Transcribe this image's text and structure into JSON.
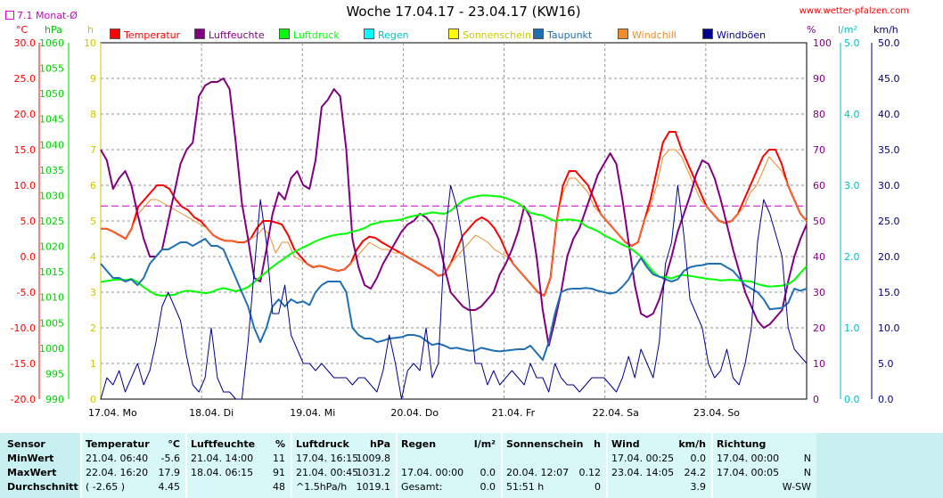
{
  "title": "Woche 17.04.17 - 23.04.17 (KW16)",
  "site": "www.wetter-pfalzen.com",
  "avg_label": "7.1 Monat-Ø",
  "units": {
    "temp": "°C",
    "hpa": "hPa",
    "sun": "h",
    "hum": "%",
    "rain": "l/m²",
    "wind": "km/h"
  },
  "legend": [
    {
      "label": "Temperatur",
      "color": "#ff0000"
    },
    {
      "label": "Luftfeuchte",
      "color": "#800080"
    },
    {
      "label": "Luftdruck",
      "color": "#00ff00"
    },
    {
      "label": "Regen",
      "color": "#00ffff"
    },
    {
      "label": "Sonnenschein",
      "color": "#ffff00"
    },
    {
      "label": "Taupunkt",
      "color": "#1e6fb4"
    },
    {
      "label": "Windchill",
      "color": "#f08c28"
    },
    {
      "label": "Windböen",
      "color": "#000090"
    }
  ],
  "chart_data": {
    "type": "line",
    "title": "Woche 17.04.17 - 23.04.17 (KW16)",
    "x_ticks": [
      "17.04. Mo",
      "18.04. Di",
      "19.04. Mi",
      "20.04. Do",
      "21.04. Fr",
      "22.04. Sa",
      "23.04. So"
    ],
    "axes": {
      "temp": {
        "ticks": [
          "30.0",
          "25.0",
          "20.0",
          "15.0",
          "10.0",
          "5.0",
          "0.0",
          "-5.0",
          "-10.0",
          "-15.0",
          "-20.0"
        ],
        "range": [
          -20,
          30
        ],
        "color": "#ff0000"
      },
      "hpa": {
        "ticks": [
          "1060",
          "1055",
          "1050",
          "1045",
          "1040",
          "1035",
          "1030",
          "1025",
          "1020",
          "1015",
          "1010",
          "1005",
          "1000",
          "995",
          "990"
        ],
        "range": [
          990,
          1060
        ],
        "color": "#00d000"
      },
      "sun": {
        "ticks": [
          "10",
          "9",
          "8",
          "7",
          "6",
          "5",
          "4",
          "3",
          "2",
          "1",
          "0"
        ],
        "range": [
          0,
          10
        ],
        "color": "#c8c800"
      },
      "hum": {
        "ticks": [
          "100",
          "90",
          "80",
          "70",
          "60",
          "50",
          "40",
          "30",
          "20",
          "10",
          "0"
        ],
        "range": [
          0,
          100
        ],
        "color": "#800080"
      },
      "rain": {
        "ticks": [
          "5.0",
          "4.0",
          "3.0",
          "2.0",
          "1.0",
          "0.0"
        ],
        "range": [
          0,
          5
        ],
        "color": "#00c0c0"
      },
      "wind": {
        "ticks": [
          "50.0",
          "45.0",
          "40.0",
          "35.0",
          "30.0",
          "25.0",
          "20.0",
          "15.0",
          "10.0",
          "5.0",
          "0.0"
        ],
        "range": [
          0,
          50
        ],
        "color": "#000080"
      }
    },
    "month_avg_temp": 7.1,
    "grid": true,
    "series": [
      {
        "name": "Temperatur",
        "axis": "temp",
        "color": "#ff0000",
        "width": 2,
        "values": [
          3.9,
          3.9,
          3.5,
          3.0,
          2.5,
          4,
          7,
          8,
          9,
          10,
          10,
          9.5,
          8,
          7,
          6.5,
          5.5,
          5,
          4,
          3,
          2.5,
          2.2,
          2.2,
          2,
          2,
          2.5,
          4,
          5,
          5,
          4.8,
          4.5,
          3,
          1,
          0,
          -1,
          -1.5,
          -1.3,
          -1.5,
          -1.8,
          -2,
          -1.8,
          -1,
          1,
          2.2,
          2.8,
          2.6,
          2,
          1.5,
          1,
          0.5,
          0,
          -0.5,
          -1,
          -1.5,
          -2,
          -2.7,
          -2.5,
          -1,
          1,
          3,
          4,
          5,
          5.5,
          5,
          4,
          2.5,
          0.5,
          -1,
          -2,
          -3,
          -4,
          -5,
          -5.5,
          -3,
          5,
          10,
          12,
          12,
          11,
          10,
          8,
          6,
          5,
          4,
          3,
          2,
          1.5,
          2,
          5,
          8,
          12,
          16,
          17.5,
          17.5,
          15,
          13,
          11,
          9,
          7,
          6,
          5,
          4.7,
          5,
          6,
          8,
          10,
          12,
          14,
          15,
          15,
          13,
          10,
          8,
          6,
          5
        ]
      },
      {
        "name": "Windchill",
        "axis": "temp",
        "color": "#f08c28",
        "width": 1,
        "values": [
          3.9,
          3.9,
          3.5,
          3.0,
          2.5,
          4,
          6,
          7,
          8,
          8,
          7.5,
          7,
          6.5,
          6,
          5.5,
          5,
          4.5,
          4,
          3,
          2.5,
          2.2,
          2.2,
          2,
          2,
          2.5,
          3,
          4,
          3,
          0.5,
          2,
          2,
          0,
          -0.5,
          -1,
          -1.5,
          -1.3,
          -1.5,
          -1.8,
          -2,
          -1.8,
          -1,
          0,
          1,
          2,
          1.5,
          1,
          1,
          0.5,
          0.5,
          0,
          -0.5,
          -1,
          -1.5,
          -2,
          -2.7,
          -2.5,
          -1,
          0,
          1,
          2,
          3,
          2.5,
          2,
          1,
          0.5,
          0,
          -1,
          -2,
          -3,
          -4,
          -5,
          -5.5,
          -3,
          5,
          9,
          11,
          11,
          10,
          9,
          7,
          6,
          5,
          4,
          3,
          2,
          1.5,
          2,
          5,
          7,
          10,
          14,
          15,
          15,
          14,
          12,
          10,
          8,
          7,
          6,
          5,
          4.7,
          5,
          6,
          7,
          9,
          10,
          12,
          14,
          13,
          12,
          10,
          8,
          6,
          5
        ]
      },
      {
        "name": "Luftfeuchte",
        "axis": "hum",
        "color": "#800080",
        "width": 2,
        "values": [
          70,
          67,
          59,
          62,
          64,
          60,
          52,
          45,
          40,
          40,
          42,
          50,
          58,
          66,
          70,
          72,
          85,
          88,
          89,
          89,
          90,
          87,
          72,
          55,
          45,
          34,
          33,
          42,
          52,
          58,
          56,
          62,
          64,
          60,
          59,
          67,
          82,
          84,
          87,
          85,
          70,
          45,
          37,
          32,
          31,
          34,
          38,
          41,
          44,
          47,
          49,
          50,
          52,
          51,
          49,
          45,
          37,
          30,
          28,
          26,
          25,
          25,
          26,
          28,
          30,
          35,
          38,
          42,
          47,
          54,
          51,
          40,
          25,
          15,
          22,
          30,
          40,
          45,
          48,
          53,
          58,
          63,
          66,
          69,
          66,
          56,
          44,
          32,
          24,
          23,
          24,
          28,
          34,
          40,
          47,
          52,
          57,
          63,
          67,
          66,
          62,
          56,
          49,
          42,
          36,
          30,
          26,
          22,
          20,
          21,
          23,
          25,
          33,
          40,
          45,
          49
        ]
      },
      {
        "name": "Luftdruck",
        "axis": "hpa",
        "color": "#00ff00",
        "width": 2,
        "values": [
          1013,
          1013.2,
          1013.4,
          1013.5,
          1013.4,
          1013.6,
          1013,
          1012,
          1011.2,
          1010.5,
          1010.3,
          1010.4,
          1010.5,
          1011,
          1011.3,
          1011.2,
          1011,
          1010.8,
          1011,
          1011.5,
          1011.8,
          1011.5,
          1011.2,
          1011.5,
          1012,
          1013,
          1014,
          1015,
          1016,
          1016.9,
          1017.7,
          1018.6,
          1019.2,
          1019.8,
          1020.4,
          1021,
          1021.5,
          1021.9,
          1022.2,
          1022.4,
          1022.5,
          1022.9,
          1023.2,
          1023.6,
          1024.3,
          1024.6,
          1024.9,
          1025,
          1025.1,
          1025.3,
          1025.7,
          1026,
          1026.2,
          1026.4,
          1026.7,
          1026.5,
          1026.4,
          1027,
          1028,
          1029,
          1029.5,
          1029.8,
          1030,
          1030,
          1029.9,
          1029.8,
          1029.5,
          1029,
          1028.5,
          1027.5,
          1026.6,
          1026.3,
          1026.1,
          1025.5,
          1025,
          1025.2,
          1025.3,
          1025.2,
          1025,
          1024,
          1023.5,
          1023,
          1022.2,
          1021.6,
          1021,
          1020.3,
          1019.8,
          1019,
          1018,
          1016.5,
          1015,
          1014,
          1014,
          1013.7,
          1014.2,
          1014.4,
          1014.2,
          1014,
          1013.8,
          1013.6,
          1013.5,
          1013.3,
          1013.4,
          1013.4,
          1013.3,
          1013.2,
          1013.1,
          1012.6,
          1012.3,
          1012.1,
          1012.2,
          1012.3,
          1012.6,
          1013.4,
          1014.8,
          1016.1
        ]
      },
      {
        "name": "Taupunkt",
        "axis": "temp",
        "color": "#1e6fb4",
        "width": 2,
        "values": [
          -1,
          -2,
          -3,
          -3,
          -3.5,
          -3.2,
          -4,
          -3,
          -1,
          0,
          1,
          1,
          1.5,
          2,
          2,
          1.5,
          2,
          2.5,
          1.5,
          1.5,
          1,
          -1,
          -3,
          -5,
          -7,
          -10,
          -12,
          -10,
          -7,
          -6,
          -7,
          -6,
          -6.5,
          -6.3,
          -6.8,
          -5,
          -4,
          -3.5,
          -3.5,
          -3.5,
          -5,
          -10,
          -11,
          -11.5,
          -11.5,
          -12,
          -11.8,
          -11.5,
          -11.4,
          -11.3,
          -11,
          -11,
          -11.2,
          -11.8,
          -12.4,
          -12.2,
          -12.5,
          -12.9,
          -12.8,
          -13,
          -13.2,
          -13.2,
          -12.8,
          -13,
          -13.2,
          -13.3,
          -13.2,
          -13.1,
          -13,
          -13,
          -12.5,
          -13.5,
          -14.5,
          -12,
          -8,
          -5,
          -4.6,
          -4.5,
          -4.5,
          -4.4,
          -4.5,
          -4.8,
          -5,
          -5.2,
          -5,
          -4.2,
          -3.2,
          -1.5,
          -0.2,
          -1.5,
          -2.5,
          -2.8,
          -3.2,
          -3.5,
          -3.2,
          -2,
          -1.5,
          -1.3,
          -1.2,
          -1,
          -1,
          -1,
          -1.5,
          -2,
          -3,
          -4,
          -4.5,
          -5,
          -6,
          -7.4,
          -7.3,
          -7.2,
          -6.5,
          -4.5,
          -4.8,
          -4.5
        ]
      },
      {
        "name": "Windböen",
        "axis": "wind",
        "color": "#000090",
        "width": 1,
        "values": [
          0,
          3,
          2,
          4,
          1,
          3,
          5,
          2,
          4,
          8,
          13,
          15,
          13,
          11,
          6,
          2,
          1,
          3,
          10,
          3,
          1,
          1,
          0,
          0,
          8,
          18,
          28,
          22,
          12,
          12,
          16,
          9,
          7,
          5,
          5,
          4,
          5,
          4,
          3,
          3,
          3,
          2,
          3,
          3,
          2,
          1,
          4,
          9,
          5,
          0,
          4,
          5,
          4,
          10,
          3,
          5,
          22,
          30,
          27,
          22,
          14,
          5,
          5,
          2,
          4,
          2,
          3,
          4,
          3,
          2,
          5,
          3,
          3,
          1,
          5,
          3,
          2,
          2,
          1,
          2,
          3,
          3,
          3,
          2,
          1,
          3,
          6,
          3,
          7,
          5,
          3,
          8,
          19,
          22,
          30,
          23,
          14,
          12,
          10,
          5,
          3,
          4,
          7,
          3,
          2,
          5,
          10,
          22,
          28,
          26,
          23,
          20,
          10,
          7,
          6,
          5
        ]
      }
    ]
  },
  "table": {
    "row_labels": [
      "Sensor",
      "MinWert",
      "MaxWert",
      "Durchschnitt"
    ],
    "columns": [
      {
        "header": "Temperatur",
        "unit": "°C",
        "rows": [
          [
            "21.04.  06:40",
            "-5.6"
          ],
          [
            "22.04.  16:20",
            "17.9"
          ],
          [
            "( -2.65 )",
            "4.45"
          ]
        ]
      },
      {
        "header": "Luftfeuchte",
        "unit": "%",
        "rows": [
          [
            "21.04.  14:00",
            "11"
          ],
          [
            "18.04.  06:15",
            "91"
          ],
          [
            "",
            "48"
          ]
        ]
      },
      {
        "header": "Luftdruck",
        "unit": "hPa",
        "rows": [
          [
            "17.04.  16:15",
            "1009.8"
          ],
          [
            "21.04.  00:45",
            "1031.2"
          ],
          [
            "^1.5hPa/h",
            "1019.1"
          ]
        ]
      },
      {
        "header": "Regen",
        "unit": "l/m²",
        "rows": [
          [
            "",
            ""
          ],
          [
            "17.04.  00:00",
            "0.0"
          ],
          [
            "Gesamt:",
            "0.0"
          ]
        ]
      },
      {
        "header": "Sonnenschein",
        "unit": "h",
        "rows": [
          [
            "",
            ""
          ],
          [
            "20.04.  12:07",
            "0.12"
          ],
          [
            "51:51 h",
            "0"
          ]
        ]
      },
      {
        "header": "Wind",
        "unit": "km/h",
        "rows": [
          [
            "17.04.  00:25",
            "0.0"
          ],
          [
            "23.04.  14:05",
            "24.2"
          ],
          [
            "",
            "3.9"
          ]
        ]
      },
      {
        "header": "Richtung",
        "unit": "",
        "rows": [
          [
            "17.04.  00:00",
            "N"
          ],
          [
            "17.04.  00:05",
            "N"
          ],
          [
            "",
            "W-SW"
          ]
        ]
      }
    ]
  }
}
